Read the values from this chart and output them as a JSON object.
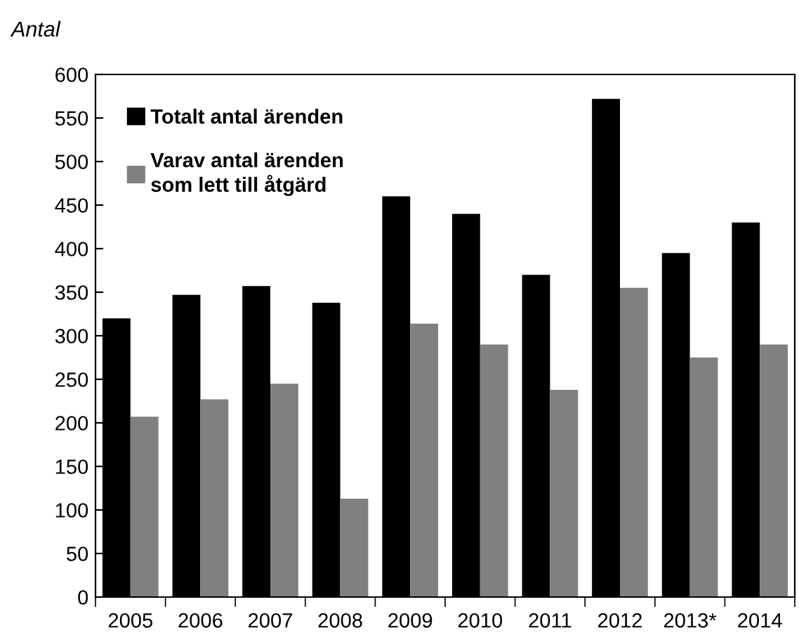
{
  "chart_data": {
    "type": "bar",
    "ylabel": "Antal",
    "categories": [
      "2005",
      "2006",
      "2007",
      "2008",
      "2009",
      "2010",
      "2011",
      "2012",
      "2013*",
      "2014"
    ],
    "series": [
      {
        "name": "Totalt antal ärenden",
        "color": "#000000",
        "values": [
          320,
          347,
          357,
          338,
          460,
          440,
          370,
          572,
          395,
          430
        ]
      },
      {
        "name": "Varav antal ärenden\nsom lett till åtgärd",
        "color": "#808080",
        "values": [
          207,
          227,
          245,
          113,
          314,
          290,
          238,
          355,
          275,
          290
        ]
      }
    ],
    "ylim": [
      0,
      600
    ],
    "yticks": [
      0,
      50,
      100,
      150,
      200,
      250,
      300,
      350,
      400,
      450,
      500,
      550,
      600
    ],
    "grid": false,
    "legend": "top left"
  }
}
